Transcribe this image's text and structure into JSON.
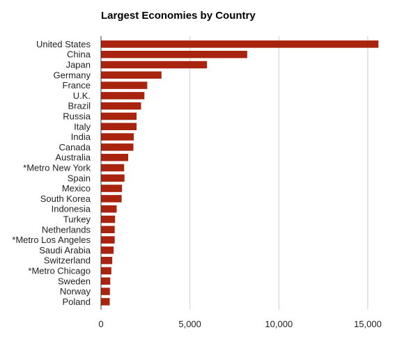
{
  "chart_data": {
    "type": "bar",
    "orientation": "horizontal",
    "title": "Largest Economies by Country",
    "xlabel": "",
    "ylabel": "",
    "categories": [
      "United States",
      "China",
      "Japan",
      "Germany",
      "France",
      "U.K.",
      "Brazil",
      "Russia",
      "Italy",
      "India",
      "Canada",
      "Australia",
      "*Metro New York",
      "Spain",
      "Mexico",
      "South Korea",
      "Indonesia",
      "Turkey",
      "Netherlands",
      "*Metro Los Angeles",
      "Saudi Arabia",
      "Switzerland",
      "*Metro Chicago",
      "Sweden",
      "Norway",
      "Poland"
    ],
    "values": [
      15600,
      8220,
      5960,
      3400,
      2600,
      2440,
      2250,
      2000,
      2000,
      1840,
      1820,
      1530,
      1300,
      1320,
      1180,
      1160,
      880,
      790,
      770,
      770,
      710,
      630,
      580,
      520,
      500,
      490
    ],
    "xlim": [
      0,
      17000
    ],
    "xticks": [
      0,
      5000,
      10000,
      15000
    ],
    "xtick_labels": [
      "0",
      "5,000",
      "10,000",
      "15,000"
    ],
    "grid": true,
    "legend": "none",
    "colors": {
      "bar": "#a8240f",
      "grid": "#cccccc",
      "axis": "#333333"
    }
  }
}
